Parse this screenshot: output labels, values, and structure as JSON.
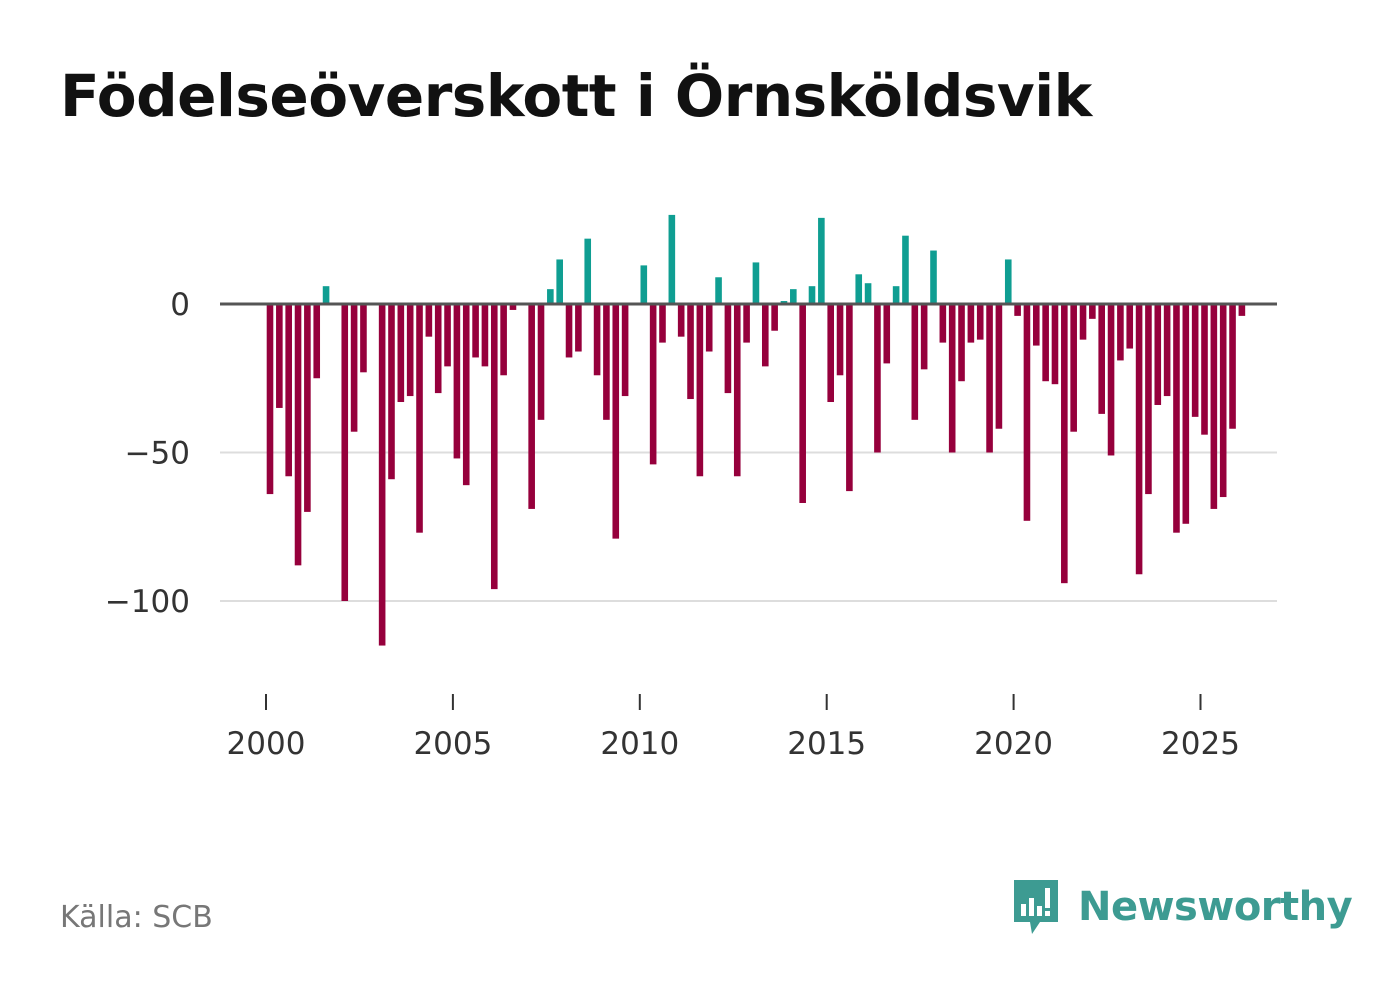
{
  "title": "Födelseöverskott i Örnsköldsvik",
  "source": "Källa: SCB",
  "brand": "Newsworthy",
  "colors": {
    "positive": "#0f9e92",
    "negative": "#96003c",
    "grid": "#dddddd",
    "zero_line": "#555555",
    "brand": "#3d9b92"
  },
  "chart_data": {
    "type": "bar",
    "title": "Födelseöverskott i Örnsköldsvik",
    "xlabel": "",
    "ylabel": "",
    "ylim": [
      -130,
      30
    ],
    "y_ticks": [
      0,
      -50,
      -100
    ],
    "y_tick_labels": [
      "0",
      "−50",
      "−100"
    ],
    "x_ticks": [
      2000,
      2005,
      2010,
      2015,
      2020,
      2025
    ],
    "x_tick_labels": [
      "2000",
      "2005",
      "2010",
      "2015",
      "2020",
      "2025"
    ],
    "x_start": 2000.0,
    "step": 0.25,
    "series": [
      {
        "name": "Födelseöverskott",
        "values": [
          -64,
          -35,
          -58,
          -88,
          -70,
          -25,
          6,
          0,
          -100,
          -43,
          -23,
          0,
          -115,
          -59,
          -33,
          -31,
          -77,
          -11,
          -30,
          -21,
          -52,
          -61,
          -18,
          -21,
          -96,
          -24,
          -2,
          0,
          -69,
          -39,
          5,
          15,
          -18,
          -16,
          22,
          -24,
          -39,
          -79,
          -31,
          0,
          13,
          -54,
          -13,
          30,
          -11,
          -32,
          -58,
          -16,
          9,
          -30,
          -58,
          -13,
          14,
          -21,
          -9,
          1,
          5,
          -67,
          6,
          29,
          -33,
          -24,
          -63,
          10,
          7,
          -50,
          -20,
          6,
          23,
          -39,
          -22,
          18,
          -13,
          -50,
          -26,
          -13,
          -12,
          -50,
          -42,
          15,
          -4,
          -73,
          -14,
          -26,
          -27,
          -94,
          -43,
          -12,
          -5,
          -37,
          -51,
          -19,
          -15,
          -91,
          -64,
          -34,
          -31,
          -77,
          -74,
          -38,
          -44,
          -69,
          -65,
          -42,
          -4
        ]
      }
    ]
  }
}
